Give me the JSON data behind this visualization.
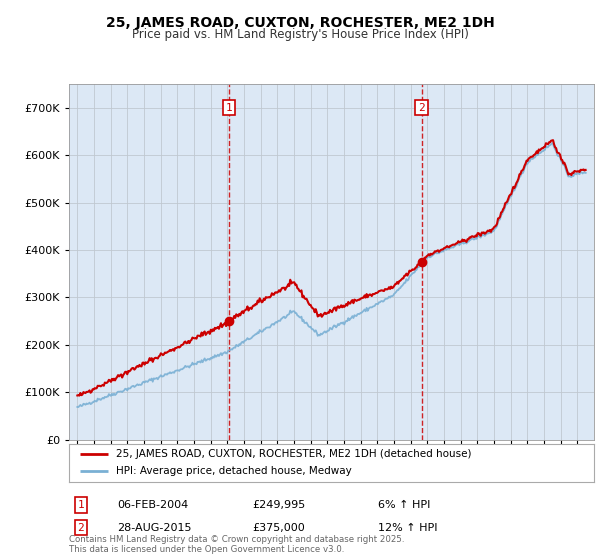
{
  "title": "25, JAMES ROAD, CUXTON, ROCHESTER, ME2 1DH",
  "subtitle": "Price paid vs. HM Land Registry's House Price Index (HPI)",
  "legend_line1": "25, JAMES ROAD, CUXTON, ROCHESTER, ME2 1DH (detached house)",
  "legend_line2": "HPI: Average price, detached house, Medway",
  "annotation1_date": "06-FEB-2004",
  "annotation1_price": "£249,995",
  "annotation1_hpi": "6% ↑ HPI",
  "annotation2_date": "28-AUG-2015",
  "annotation2_price": "£375,000",
  "annotation2_hpi": "12% ↑ HPI",
  "footer": "Contains HM Land Registry data © Crown copyright and database right 2025.\nThis data is licensed under the Open Government Licence v3.0.",
  "red_color": "#cc0000",
  "blue_color": "#7ab0d4",
  "background_color": "#dce8f5",
  "ylim": [
    0,
    750000
  ],
  "yticks": [
    0,
    100000,
    200000,
    300000,
    400000,
    500000,
    600000,
    700000
  ],
  "sale1_year": 2004.1,
  "sale1_price": 249995,
  "sale2_year": 2015.65,
  "sale2_price": 375000
}
